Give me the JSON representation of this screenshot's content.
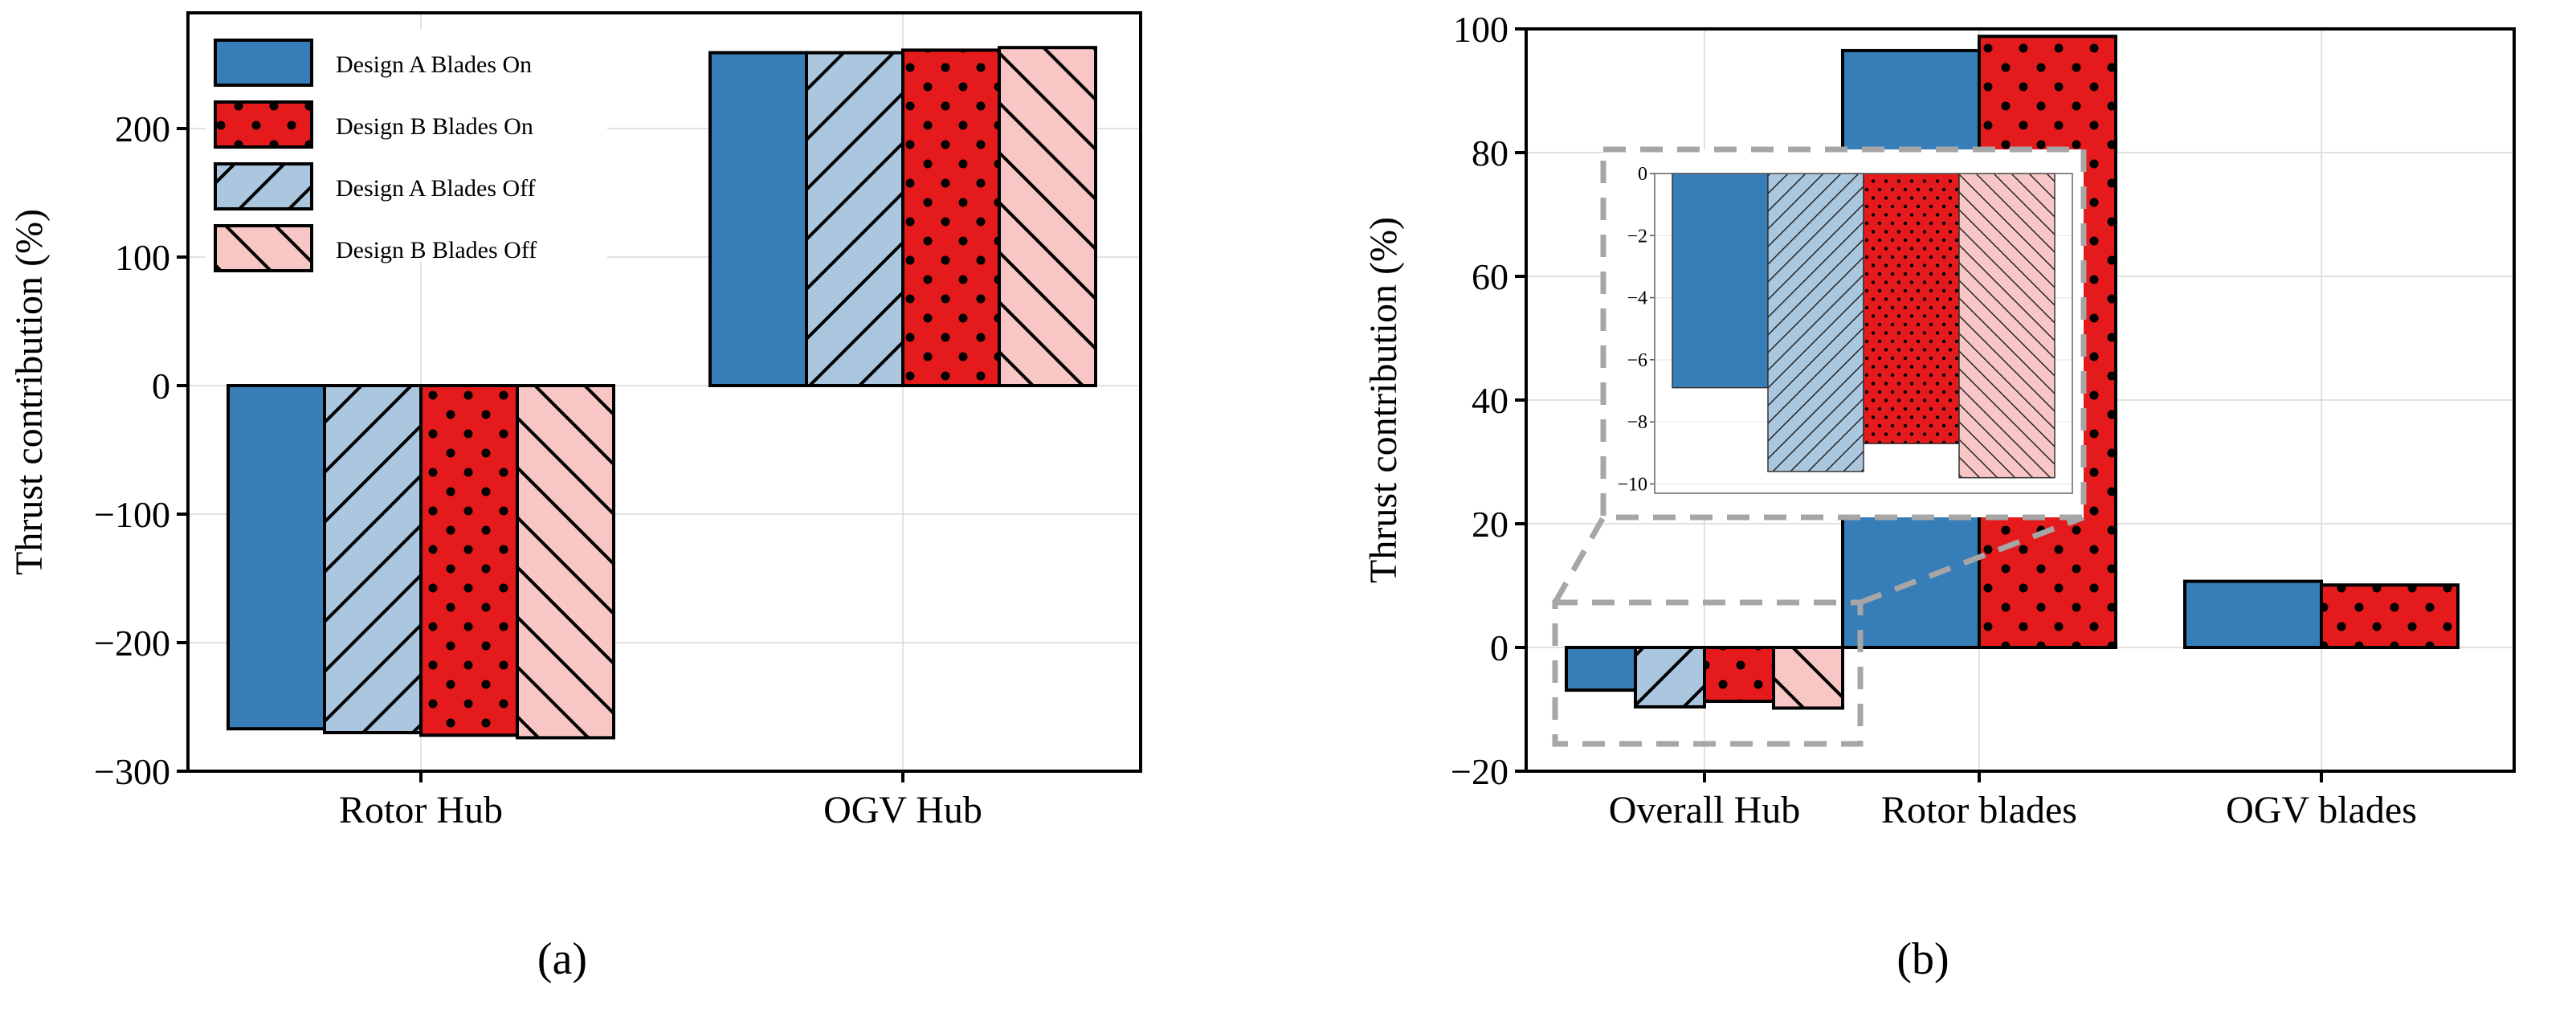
{
  "chart_data": [
    {
      "id": "a",
      "type": "bar",
      "panel_label": "(a)",
      "ylabel": "Thrust contribution (%)",
      "xlabel": "",
      "ylim": [
        -300,
        290
      ],
      "yticks": [
        "200",
        "100",
        "0",
        "−100",
        "−200",
        "−300"
      ],
      "ytick_values": [
        200,
        100,
        0,
        -100,
        -200,
        -300
      ],
      "grid": true,
      "categories": [
        "Rotor Hub",
        "OGV Hub"
      ],
      "legend_position": "top-left",
      "series": [
        {
          "name": "Design A Blades On",
          "color": "#377eb8",
          "pattern": "none",
          "values": [
            -267,
            259
          ]
        },
        {
          "name": "Design B Blades On",
          "color": "#e41a1c",
          "pattern": "dots",
          "values": [
            -272,
            261
          ]
        },
        {
          "name": "Design A Blades Off",
          "color": "#abc6df",
          "pattern": "forward-hatch",
          "values": [
            -270,
            259
          ]
        },
        {
          "name": "Design B Blades Off",
          "color": "#f9c6c6",
          "pattern": "back-hatch",
          "values": [
            -274,
            263
          ]
        }
      ]
    },
    {
      "id": "b",
      "type": "bar",
      "panel_label": "(b)",
      "ylabel": "Thrust contribution (%)",
      "xlabel": "",
      "ylim": [
        -20,
        100
      ],
      "yticks": [
        "100",
        "80",
        "60",
        "40",
        "20",
        "0",
        "−20"
      ],
      "ytick_values": [
        100,
        80,
        60,
        40,
        20,
        0,
        -20
      ],
      "grid": true,
      "categories": [
        "Overall Hub",
        "Rotor blades",
        "OGV blades"
      ],
      "bars": [
        {
          "category": "Overall Hub",
          "series": "Design A Blades On",
          "value": -6.9
        },
        {
          "category": "Overall Hub",
          "series": "Design A Blades Off",
          "value": -9.6
        },
        {
          "category": "Overall Hub",
          "series": "Design B Blades On",
          "value": -8.7
        },
        {
          "category": "Overall Hub",
          "series": "Design B Blades Off",
          "value": -9.8
        },
        {
          "category": "Rotor blades",
          "series": "Design A Blades On",
          "value": 96.5
        },
        {
          "category": "Rotor blades",
          "series": "Design B Blades On",
          "value": 98.8
        },
        {
          "category": "OGV blades",
          "series": "Design A Blades On",
          "value": 10.7
        },
        {
          "category": "OGV blades",
          "series": "Design B Blades On",
          "value": 10.1
        }
      ],
      "inset": {
        "type": "bar",
        "ylim": [
          -10.3,
          0
        ],
        "yticks": [
          "0",
          "−2",
          "−4",
          "−6",
          "−8",
          "−10"
        ],
        "ytick_values": [
          0,
          -2,
          -4,
          -6,
          -8,
          -10
        ],
        "series": [
          "Design A Blades On",
          "Design A Blades Off",
          "Design B Blades On",
          "Design B Blades Off"
        ],
        "values": [
          -6.9,
          -9.6,
          -8.7,
          -9.8
        ]
      }
    }
  ]
}
